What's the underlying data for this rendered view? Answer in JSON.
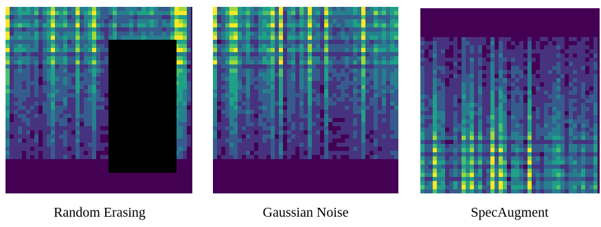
{
  "panels": [
    {
      "caption": "Random Erasing"
    },
    {
      "caption": "Gaussian Noise"
    },
    {
      "caption": "SpecAugment"
    }
  ]
}
